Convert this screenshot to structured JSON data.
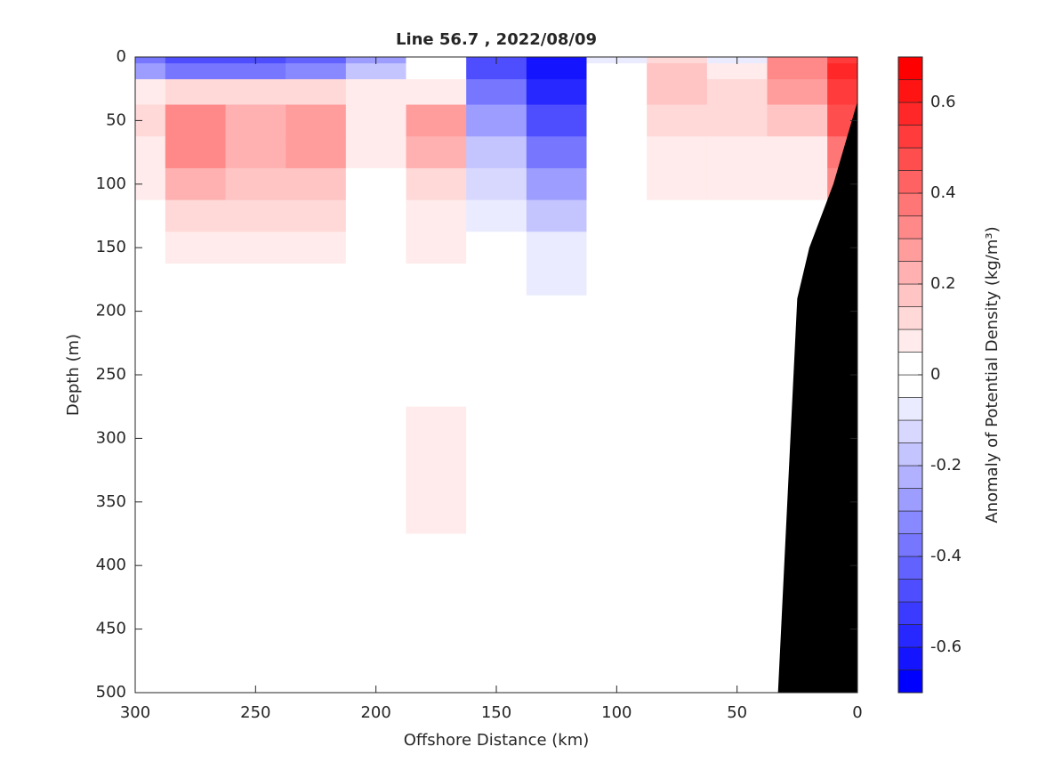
{
  "chart_data": {
    "type": "contourf",
    "title": "Line 56.7 , 2022/08/09",
    "xlabel": "Offshore Distance (km)",
    "ylabel": "Depth (m)",
    "colorbar_label": "Anomaly of Potential Density (kg/m³)",
    "x": [
      300,
      275,
      250,
      225,
      200,
      175,
      150,
      125,
      100,
      75,
      50,
      25,
      0
    ],
    "depth": [
      0,
      10,
      25,
      50,
      75,
      100,
      125,
      150,
      175,
      200,
      250,
      300,
      350,
      400,
      450,
      500
    ],
    "values": [
      [
        -0.4,
        -0.5,
        -0.5,
        -0.45,
        -0.3,
        -0.05,
        -0.5,
        -0.65,
        -0.1,
        0.1,
        -0.1,
        0.3,
        0.5
      ],
      [
        -0.3,
        -0.4,
        -0.4,
        -0.35,
        -0.2,
        0,
        -0.5,
        -0.65,
        -0.05,
        0.15,
        0.05,
        0.3,
        0.55
      ],
      [
        0.05,
        0.1,
        0.1,
        0.1,
        0.05,
        0.05,
        -0.4,
        -0.6,
        0,
        0.15,
        0.1,
        0.25,
        0.5
      ],
      [
        0.1,
        0.3,
        0.2,
        0.25,
        0.08,
        0.25,
        -0.3,
        -0.5,
        0,
        0.12,
        0.1,
        0.15,
        0.45
      ],
      [
        0.08,
        0.3,
        0.2,
        0.25,
        0.06,
        0.2,
        -0.2,
        -0.4,
        0,
        0.08,
        0.07,
        0.08,
        0.35
      ],
      [
        0.05,
        0.2,
        0.15,
        0.15,
        0,
        0.12,
        -0.15,
        -0.3,
        0,
        0.06,
        0.05,
        0.05,
        0.3
      ],
      [
        0.03,
        0.12,
        0.12,
        0.12,
        0,
        0.08,
        -0.1,
        -0.2,
        0,
        0.03,
        0.02,
        0.02,
        0.2
      ],
      [
        0,
        0.08,
        0.07,
        0.06,
        0,
        0.06,
        -0.05,
        -0.1,
        0,
        0,
        0,
        0,
        0.1
      ],
      [
        0,
        0,
        0,
        0,
        0,
        0.03,
        0,
        -0.06,
        0,
        0,
        0,
        0,
        0
      ],
      [
        0,
        0,
        0,
        0,
        0,
        0.03,
        0,
        0,
        0,
        0,
        0,
        0,
        0
      ],
      [
        0,
        0,
        0,
        0,
        0,
        0.03,
        0,
        0,
        0,
        0,
        0,
        0,
        0
      ],
      [
        0,
        0,
        0,
        0,
        0,
        0.06,
        0,
        0,
        0,
        0,
        0,
        0,
        0
      ],
      [
        0,
        0,
        0,
        0,
        0,
        0.06,
        0,
        0,
        0,
        0,
        0,
        0,
        0
      ],
      [
        0,
        0,
        0,
        0,
        0,
        0.03,
        0,
        0,
        0,
        0,
        0,
        0,
        0
      ],
      [
        0,
        0,
        0,
        0,
        0,
        0,
        0,
        0,
        0,
        0,
        0,
        0,
        0
      ],
      [
        0,
        0,
        0,
        0,
        0,
        0,
        0,
        0,
        0,
        0,
        0,
        0,
        0
      ]
    ],
    "bottom": {
      "x": [
        0,
        10,
        20,
        25,
        33
      ],
      "depth": [
        35,
        100,
        150,
        190,
        500
      ],
      "color": "#000000"
    },
    "xlim": [
      300,
      0
    ],
    "xticks": [
      300,
      250,
      200,
      150,
      100,
      50,
      0
    ],
    "ylim": [
      0,
      500
    ],
    "yticks": [
      0,
      50,
      100,
      150,
      200,
      250,
      300,
      350,
      400,
      450,
      500
    ],
    "clim": [
      -0.7,
      0.7
    ],
    "cticks": [
      -0.6,
      -0.4,
      -0.2,
      0,
      0.2,
      0.4,
      0.6
    ],
    "clevels": [
      -0.7,
      -0.65,
      -0.6,
      -0.55,
      -0.5,
      -0.45,
      -0.4,
      -0.35,
      -0.3,
      -0.25,
      -0.2,
      -0.15,
      -0.1,
      -0.05,
      0,
      0.05,
      0.1,
      0.15,
      0.2,
      0.25,
      0.3,
      0.35,
      0.4,
      0.45,
      0.5,
      0.55,
      0.6,
      0.65,
      0.7
    ],
    "colormap": [
      "#0000ff",
      "#ffffff",
      "#ff0000"
    ]
  }
}
